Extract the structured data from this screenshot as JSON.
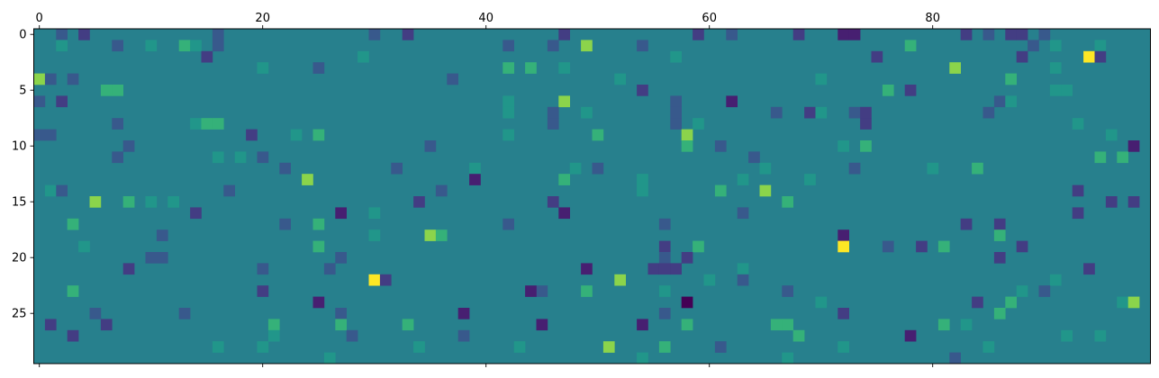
{
  "chart_data": {
    "type": "heatmap",
    "colormap": "viridis",
    "title": "",
    "xlabel": "",
    "ylabel": "",
    "x_axis_position": "top",
    "grid": false,
    "n_cols": 100,
    "n_rows": 30,
    "xlim": [
      -0.5,
      99.5
    ],
    "ylim": [
      29.5,
      -0.5
    ],
    "vmin": -4,
    "vmax": 4,
    "background_value": 0,
    "x_ticks": [
      0,
      20,
      40,
      60,
      80
    ],
    "y_ticks": [
      0,
      5,
      10,
      15,
      20,
      25
    ],
    "cells": [
      [
        0,
        2,
        -1
      ],
      [
        0,
        4,
        -2
      ],
      [
        0,
        16,
        -1
      ],
      [
        0,
        30,
        -1
      ],
      [
        0,
        33,
        -2
      ],
      [
        0,
        47,
        -2
      ],
      [
        0,
        59,
        -2
      ],
      [
        0,
        62,
        -1
      ],
      [
        0,
        68,
        -2
      ],
      [
        0,
        72,
        -3
      ],
      [
        0,
        73,
        -3
      ],
      [
        0,
        83,
        -2
      ],
      [
        0,
        85,
        -1
      ],
      [
        0,
        87,
        -2
      ],
      [
        0,
        88,
        -2
      ],
      [
        0,
        90,
        -1
      ],
      [
        1,
        2,
        1
      ],
      [
        1,
        7,
        -1
      ],
      [
        1,
        10,
        1
      ],
      [
        1,
        13,
        2
      ],
      [
        1,
        14,
        1
      ],
      [
        1,
        16,
        -1
      ],
      [
        1,
        42,
        -1
      ],
      [
        1,
        46,
        -1
      ],
      [
        1,
        49,
        3
      ],
      [
        1,
        54,
        -1
      ],
      [
        1,
        78,
        2
      ],
      [
        1,
        89,
        -1
      ],
      [
        1,
        91,
        1
      ],
      [
        1,
        95,
        1
      ],
      [
        2,
        15,
        -2
      ],
      [
        2,
        29,
        1
      ],
      [
        2,
        57,
        1
      ],
      [
        2,
        75,
        -2
      ],
      [
        2,
        88,
        -2
      ],
      [
        2,
        94,
        4
      ],
      [
        2,
        95,
        -2
      ],
      [
        3,
        20,
        1
      ],
      [
        3,
        25,
        -1
      ],
      [
        3,
        42,
        2
      ],
      [
        3,
        44,
        2
      ],
      [
        3,
        47,
        1
      ],
      [
        3,
        82,
        3
      ],
      [
        3,
        91,
        1
      ],
      [
        4,
        0,
        3
      ],
      [
        4,
        1,
        -1
      ],
      [
        4,
        3,
        -1
      ],
      [
        4,
        37,
        -1
      ],
      [
        4,
        52,
        1
      ],
      [
        4,
        70,
        1
      ],
      [
        4,
        87,
        2
      ],
      [
        5,
        6,
        2
      ],
      [
        5,
        7,
        2
      ],
      [
        5,
        54,
        -2
      ],
      [
        5,
        76,
        2
      ],
      [
        5,
        78,
        -2
      ],
      [
        5,
        91,
        1
      ],
      [
        5,
        92,
        1
      ],
      [
        6,
        0,
        -1
      ],
      [
        6,
        2,
        -2
      ],
      [
        6,
        42,
        1
      ],
      [
        6,
        47,
        3
      ],
      [
        6,
        57,
        -1
      ],
      [
        6,
        62,
        -3
      ],
      [
        6,
        86,
        -1
      ],
      [
        6,
        87,
        1
      ],
      [
        7,
        42,
        1
      ],
      [
        7,
        46,
        -1
      ],
      [
        7,
        49,
        1
      ],
      [
        7,
        57,
        -1
      ],
      [
        7,
        66,
        -1
      ],
      [
        7,
        69,
        -2
      ],
      [
        7,
        70,
        1
      ],
      [
        7,
        73,
        -1
      ],
      [
        7,
        74,
        -2
      ],
      [
        7,
        85,
        -1
      ],
      [
        8,
        7,
        -1
      ],
      [
        8,
        14,
        1
      ],
      [
        8,
        15,
        2
      ],
      [
        8,
        16,
        2
      ],
      [
        8,
        46,
        -1
      ],
      [
        8,
        57,
        -1
      ],
      [
        8,
        59,
        1
      ],
      [
        8,
        74,
        -2
      ],
      [
        8,
        93,
        1
      ],
      [
        9,
        0,
        -1
      ],
      [
        9,
        1,
        -1
      ],
      [
        9,
        19,
        -2
      ],
      [
        9,
        23,
        1
      ],
      [
        9,
        25,
        2
      ],
      [
        9,
        42,
        1
      ],
      [
        9,
        50,
        2
      ],
      [
        9,
        58,
        3
      ],
      [
        9,
        96,
        1
      ],
      [
        10,
        8,
        -1
      ],
      [
        10,
        35,
        -1
      ],
      [
        10,
        58,
        2
      ],
      [
        10,
        61,
        -1
      ],
      [
        10,
        72,
        1
      ],
      [
        10,
        74,
        2
      ],
      [
        10,
        98,
        -3
      ],
      [
        11,
        7,
        -1
      ],
      [
        11,
        16,
        1
      ],
      [
        11,
        18,
        1
      ],
      [
        11,
        20,
        -1
      ],
      [
        11,
        64,
        -1
      ],
      [
        11,
        95,
        2
      ],
      [
        11,
        97,
        2
      ],
      [
        12,
        22,
        -1
      ],
      [
        12,
        32,
        -1
      ],
      [
        12,
        39,
        1
      ],
      [
        12,
        48,
        1
      ],
      [
        12,
        50,
        -1
      ],
      [
        12,
        65,
        1
      ],
      [
        12,
        73,
        -1
      ],
      [
        12,
        80,
        1
      ],
      [
        12,
        84,
        2
      ],
      [
        13,
        24,
        3
      ],
      [
        13,
        39,
        -3
      ],
      [
        13,
        47,
        2
      ],
      [
        13,
        54,
        1
      ],
      [
        13,
        63,
        1
      ],
      [
        13,
        69,
        1
      ],
      [
        14,
        1,
        1
      ],
      [
        14,
        2,
        -1
      ],
      [
        14,
        17,
        -1
      ],
      [
        14,
        36,
        -1
      ],
      [
        14,
        54,
        1
      ],
      [
        14,
        61,
        2
      ],
      [
        14,
        65,
        3
      ],
      [
        14,
        93,
        -2
      ],
      [
        15,
        5,
        3
      ],
      [
        15,
        8,
        2
      ],
      [
        15,
        10,
        1
      ],
      [
        15,
        12,
        1
      ],
      [
        15,
        34,
        -2
      ],
      [
        15,
        46,
        -2
      ],
      [
        15,
        67,
        2
      ],
      [
        15,
        96,
        -2
      ],
      [
        15,
        98,
        -2
      ],
      [
        16,
        14,
        -2
      ],
      [
        16,
        27,
        -3
      ],
      [
        16,
        30,
        1
      ],
      [
        16,
        47,
        -3
      ],
      [
        16,
        63,
        -1
      ],
      [
        16,
        93,
        -2
      ],
      [
        17,
        3,
        2
      ],
      [
        17,
        22,
        -1
      ],
      [
        17,
        25,
        2
      ],
      [
        17,
        42,
        -1
      ],
      [
        17,
        56,
        -1
      ],
      [
        17,
        83,
        -2
      ],
      [
        17,
        86,
        -2
      ],
      [
        18,
        11,
        -1
      ],
      [
        18,
        30,
        1
      ],
      [
        18,
        35,
        3
      ],
      [
        18,
        36,
        2
      ],
      [
        18,
        72,
        -3
      ],
      [
        18,
        86,
        2
      ],
      [
        19,
        4,
        1
      ],
      [
        19,
        25,
        2
      ],
      [
        19,
        56,
        -2
      ],
      [
        19,
        59,
        2
      ],
      [
        19,
        72,
        4
      ],
      [
        19,
        76,
        -1
      ],
      [
        19,
        79,
        -2
      ],
      [
        19,
        81,
        2
      ],
      [
        19,
        88,
        -2
      ],
      [
        20,
        10,
        -1
      ],
      [
        20,
        11,
        -1
      ],
      [
        20,
        27,
        -1
      ],
      [
        20,
        56,
        -1
      ],
      [
        20,
        58,
        -2
      ],
      [
        20,
        86,
        -2
      ],
      [
        21,
        8,
        -2
      ],
      [
        21,
        20,
        -1
      ],
      [
        21,
        26,
        -1
      ],
      [
        21,
        49,
        -3
      ],
      [
        21,
        55,
        -2
      ],
      [
        21,
        56,
        -2
      ],
      [
        21,
        57,
        -2
      ],
      [
        21,
        63,
        1
      ],
      [
        21,
        94,
        -2
      ],
      [
        22,
        30,
        4
      ],
      [
        22,
        31,
        -2
      ],
      [
        22,
        52,
        3
      ],
      [
        22,
        60,
        1
      ],
      [
        22,
        63,
        -1
      ],
      [
        22,
        91,
        1
      ],
      [
        23,
        3,
        2
      ],
      [
        23,
        20,
        -2
      ],
      [
        23,
        45,
        -1
      ],
      [
        23,
        44,
        -3
      ],
      [
        23,
        49,
        2
      ],
      [
        23,
        56,
        1
      ],
      [
        23,
        67,
        -1
      ],
      [
        23,
        88,
        1
      ],
      [
        23,
        90,
        -1
      ],
      [
        24,
        25,
        -3
      ],
      [
        24,
        58,
        -4
      ],
      [
        24,
        70,
        1
      ],
      [
        24,
        84,
        -2
      ],
      [
        24,
        87,
        2
      ],
      [
        24,
        97,
        1
      ],
      [
        24,
        98,
        3
      ],
      [
        25,
        5,
        -1
      ],
      [
        25,
        13,
        -1
      ],
      [
        25,
        27,
        -1
      ],
      [
        25,
        38,
        -3
      ],
      [
        25,
        56,
        -1
      ],
      [
        25,
        72,
        -2
      ],
      [
        25,
        86,
        2
      ],
      [
        26,
        1,
        -2
      ],
      [
        26,
        6,
        -2
      ],
      [
        26,
        21,
        2
      ],
      [
        26,
        27,
        2
      ],
      [
        26,
        33,
        2
      ],
      [
        26,
        45,
        -3
      ],
      [
        26,
        54,
        -3
      ],
      [
        26,
        58,
        2
      ],
      [
        26,
        66,
        2
      ],
      [
        26,
        67,
        2
      ],
      [
        26,
        81,
        2
      ],
      [
        26,
        83,
        1
      ],
      [
        27,
        3,
        -2
      ],
      [
        27,
        21,
        1
      ],
      [
        27,
        28,
        -1
      ],
      [
        27,
        38,
        -1
      ],
      [
        27,
        68,
        2
      ],
      [
        27,
        78,
        -3
      ],
      [
        27,
        92,
        1
      ],
      [
        27,
        95,
        1
      ],
      [
        28,
        16,
        1
      ],
      [
        28,
        20,
        1
      ],
      [
        28,
        34,
        1
      ],
      [
        28,
        43,
        1
      ],
      [
        28,
        51,
        3
      ],
      [
        28,
        56,
        2
      ],
      [
        28,
        61,
        -1
      ],
      [
        28,
        72,
        1
      ],
      [
        28,
        85,
        1
      ],
      [
        29,
        26,
        1
      ],
      [
        29,
        54,
        1
      ],
      [
        29,
        67,
        1
      ],
      [
        29,
        82,
        -1
      ]
    ]
  }
}
